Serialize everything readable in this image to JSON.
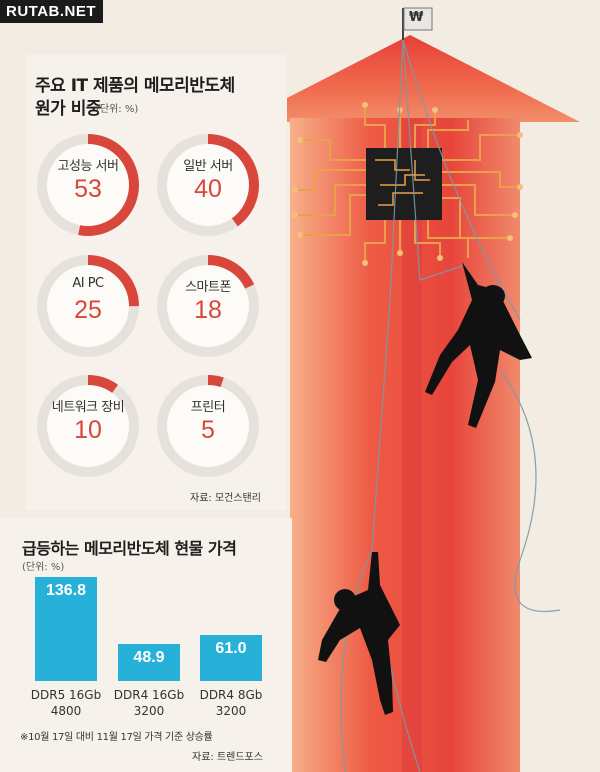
{
  "watermark": "RUTAB.NET",
  "flag_symbol": "₩",
  "donut_section": {
    "title_line1": "주요 IT 제품의 메모리반도체",
    "title_line2": "원가 비중",
    "unit": "(단위: %)",
    "source": "자료: 모건스탠리"
  },
  "bar_section": {
    "title": "급등하는 메모리반도체 현물 가격",
    "unit": "(단위: %)",
    "note": "※10월 17일 대비 11월 17일 가격 기준 상승률",
    "source": "자료: 트렌드포스"
  },
  "colors": {
    "accent_red": "#d8463c",
    "bar_blue": "#27b0d8",
    "ring_gray": "#e6e1da"
  },
  "chart_data": [
    {
      "type": "pie",
      "title": "주요 IT 제품의 메모리반도체 원가 비중",
      "unit": "%",
      "items": [
        {
          "label": "고성능 서버",
          "value": 53
        },
        {
          "label": "일반 서버",
          "value": 40
        },
        {
          "label": "AI PC",
          "value": 25
        },
        {
          "label": "스마트폰",
          "value": 18
        },
        {
          "label": "네트워크 장비",
          "value": 10
        },
        {
          "label": "프린터",
          "value": 5
        }
      ]
    },
    {
      "type": "bar",
      "title": "급등하는 메모리반도체 현물 가격",
      "unit": "%",
      "categories": [
        [
          "DDR5 16Gb",
          "4800"
        ],
        [
          "DDR4 16Gb",
          "3200"
        ],
        [
          "DDR4 8Gb",
          "3200"
        ]
      ],
      "values": [
        "136.8",
        "48.9",
        "61.0"
      ],
      "ylim": [
        0,
        136.8
      ]
    }
  ]
}
